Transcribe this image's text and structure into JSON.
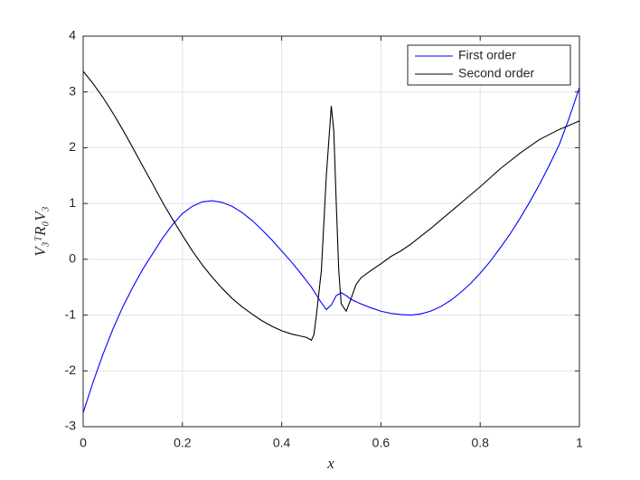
{
  "chart_data": {
    "type": "line",
    "xlabel": "x",
    "ylabel": "V₃ᵀR₀V₃",
    "xlim": [
      0,
      1
    ],
    "ylim": [
      -3,
      4
    ],
    "xticks": [
      0,
      0.2,
      0.4,
      0.6,
      0.8,
      1
    ],
    "yticks": [
      -3,
      -2,
      -1,
      0,
      1,
      2,
      3,
      4
    ],
    "grid": true,
    "legend": "northeast",
    "series": [
      {
        "name": "First order",
        "color": "#0000ff",
        "x": [
          0,
          0.02,
          0.04,
          0.06,
          0.08,
          0.1,
          0.12,
          0.14,
          0.16,
          0.18,
          0.2,
          0.22,
          0.24,
          0.26,
          0.28,
          0.3,
          0.32,
          0.34,
          0.36,
          0.38,
          0.4,
          0.42,
          0.44,
          0.46,
          0.48,
          0.49,
          0.5,
          0.51,
          0.52,
          0.53,
          0.54,
          0.56,
          0.58,
          0.6,
          0.62,
          0.64,
          0.66,
          0.68,
          0.7,
          0.72,
          0.74,
          0.76,
          0.78,
          0.8,
          0.82,
          0.84,
          0.86,
          0.88,
          0.9,
          0.92,
          0.94,
          0.96,
          0.98,
          1
        ],
        "values": [
          -2.75,
          -2.2,
          -1.7,
          -1.25,
          -0.85,
          -0.5,
          -0.18,
          0.1,
          0.38,
          0.62,
          0.82,
          0.95,
          1.03,
          1.05,
          1.02,
          0.95,
          0.84,
          0.7,
          0.53,
          0.35,
          0.15,
          -0.05,
          -0.27,
          -0.5,
          -0.78,
          -0.9,
          -0.82,
          -0.65,
          -0.6,
          -0.65,
          -0.72,
          -0.8,
          -0.87,
          -0.93,
          -0.97,
          -0.99,
          -1.0,
          -0.98,
          -0.93,
          -0.85,
          -0.74,
          -0.6,
          -0.44,
          -0.25,
          -0.04,
          0.2,
          0.45,
          0.73,
          1.03,
          1.35,
          1.7,
          2.07,
          2.55,
          3.08
        ]
      },
      {
        "name": "Second order",
        "color": "#000000",
        "x": [
          0,
          0.02,
          0.04,
          0.06,
          0.08,
          0.1,
          0.12,
          0.14,
          0.16,
          0.18,
          0.2,
          0.22,
          0.24,
          0.26,
          0.28,
          0.3,
          0.32,
          0.34,
          0.36,
          0.38,
          0.4,
          0.42,
          0.44,
          0.45,
          0.46,
          0.465,
          0.47,
          0.48,
          0.49,
          0.5,
          0.505,
          0.51,
          0.515,
          0.52,
          0.53,
          0.54,
          0.55,
          0.56,
          0.58,
          0.6,
          0.62,
          0.64,
          0.66,
          0.7,
          0.74,
          0.78,
          0.8,
          0.84,
          0.88,
          0.92,
          0.96,
          1
        ],
        "values": [
          3.37,
          3.15,
          2.9,
          2.62,
          2.32,
          2.0,
          1.67,
          1.35,
          1.02,
          0.72,
          0.43,
          0.15,
          -0.1,
          -0.32,
          -0.52,
          -0.7,
          -0.85,
          -0.98,
          -1.1,
          -1.2,
          -1.28,
          -1.34,
          -1.38,
          -1.4,
          -1.45,
          -1.35,
          -1.0,
          -0.2,
          1.5,
          2.75,
          2.3,
          1.0,
          -0.2,
          -0.8,
          -0.93,
          -0.7,
          -0.45,
          -0.33,
          -0.2,
          -0.08,
          0.05,
          0.15,
          0.27,
          0.55,
          0.85,
          1.15,
          1.3,
          1.62,
          1.9,
          2.15,
          2.33,
          2.48
        ]
      }
    ]
  }
}
